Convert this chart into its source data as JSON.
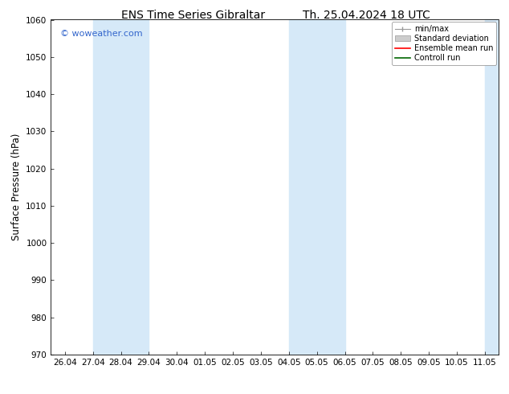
{
  "title_left": "ENS Time Series Gibraltar",
  "title_right": "Th. 25.04.2024 18 UTC",
  "ylabel": "Surface Pressure (hPa)",
  "ylim": [
    970,
    1060
  ],
  "yticks": [
    970,
    980,
    990,
    1000,
    1010,
    1020,
    1030,
    1040,
    1050,
    1060
  ],
  "xtick_labels": [
    "26.04",
    "27.04",
    "28.04",
    "29.04",
    "30.04",
    "01.05",
    "02.05",
    "03.05",
    "04.05",
    "05.05",
    "06.05",
    "07.05",
    "08.05",
    "09.05",
    "10.05",
    "11.05"
  ],
  "watermark": "© woweather.com",
  "watermark_color": "#3366cc",
  "bg_color": "#ffffff",
  "plot_bg_color": "#ffffff",
  "shaded_bands": [
    {
      "xstart": 1.0,
      "xend": 2.0,
      "color": "#d6e9f8"
    },
    {
      "xstart": 2.0,
      "xend": 3.0,
      "color": "#d6e9f8"
    },
    {
      "xstart": 8.0,
      "xend": 9.0,
      "color": "#d6e9f8"
    },
    {
      "xstart": 9.0,
      "xend": 10.0,
      "color": "#d6e9f8"
    },
    {
      "xstart": 15.0,
      "xend": 15.5,
      "color": "#d6e9f8"
    }
  ],
  "legend_entries": [
    {
      "label": "min/max"
    },
    {
      "label": "Standard deviation"
    },
    {
      "label": "Ensemble mean run"
    },
    {
      "label": "Controll run"
    }
  ],
  "title_fontsize": 10,
  "tick_fontsize": 7.5,
  "label_fontsize": 8.5,
  "watermark_fontsize": 8,
  "legend_fontsize": 7
}
